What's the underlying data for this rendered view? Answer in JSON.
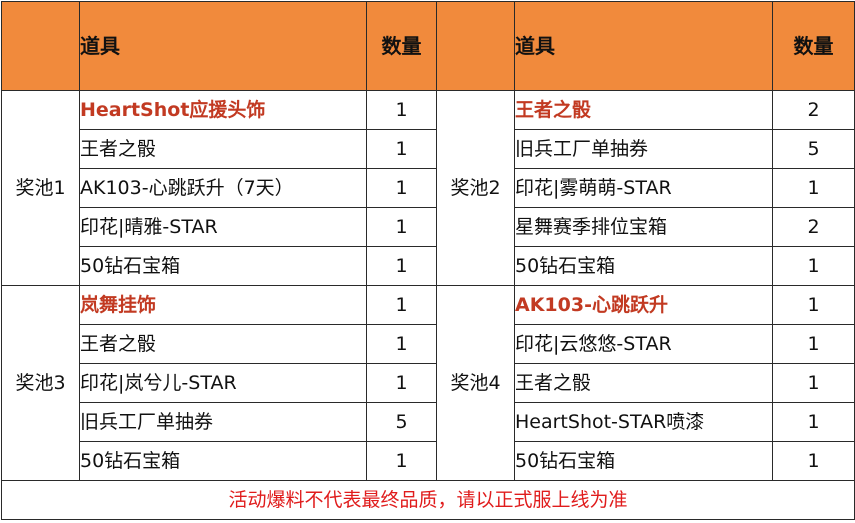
{
  "header": {
    "item_label": "道具",
    "qty_label": "数量"
  },
  "pools": [
    {
      "name": "奖池1",
      "items": [
        {
          "name": "HeartShot应援头饰",
          "qty": "1",
          "highlight": true
        },
        {
          "name": "王者之骰",
          "qty": "1"
        },
        {
          "name": "AK103-心跳跃升（7天）",
          "qty": "1"
        },
        {
          "name": "印花|晴雅-STAR",
          "qty": "1"
        },
        {
          "name": "50钻石宝箱",
          "qty": "1"
        }
      ]
    },
    {
      "name": "奖池2",
      "items": [
        {
          "name": "王者之骰",
          "qty": "2",
          "highlight": true
        },
        {
          "name": "旧兵工厂单抽券",
          "qty": "5"
        },
        {
          "name": "印花|雾萌萌-STAR",
          "qty": "1"
        },
        {
          "name": "星舞赛季排位宝箱",
          "qty": "2"
        },
        {
          "name": "50钻石宝箱",
          "qty": "1"
        }
      ]
    },
    {
      "name": "奖池3",
      "items": [
        {
          "name": "岚舞挂饰",
          "qty": "1",
          "highlight": true
        },
        {
          "name": "王者之骰",
          "qty": "1"
        },
        {
          "name": "印花|岚兮儿-STAR",
          "qty": "1"
        },
        {
          "name": "旧兵工厂单抽券",
          "qty": "5"
        },
        {
          "name": "50钻石宝箱",
          "qty": "1"
        }
      ]
    },
    {
      "name": "奖池4",
      "items": [
        {
          "name": "AK103-心跳跃升",
          "qty": "1",
          "highlight": true
        },
        {
          "name": "印花|云悠悠-STAR",
          "qty": "1"
        },
        {
          "name": "王者之骰",
          "qty": "1"
        },
        {
          "name": "HeartShot-STAR喷漆",
          "qty": "1"
        },
        {
          "name": "50钻石宝箱",
          "qty": "1"
        }
      ]
    }
  ],
  "footer": {
    "note": "活动爆料不代表最终品质，请以正式服上线为准"
  },
  "colors": {
    "header_bg": "#f18a3c",
    "highlight_text": "#c23a22",
    "footer_text": "#e01c1c"
  }
}
